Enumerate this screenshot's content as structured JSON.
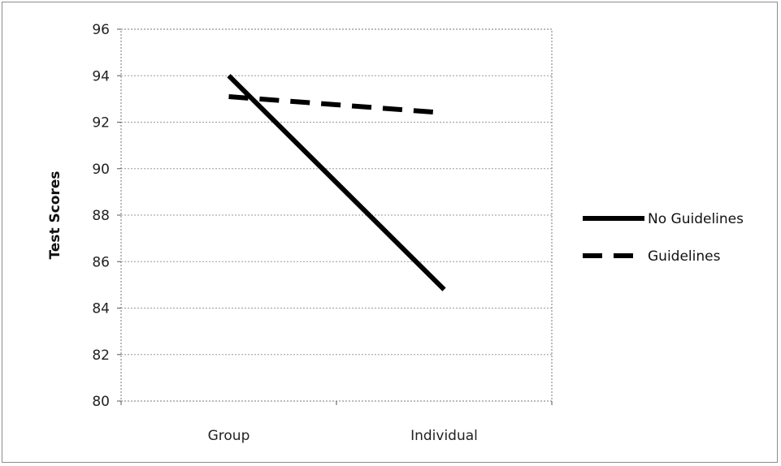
{
  "chart_data": {
    "type": "line",
    "categories": [
      "Group",
      "Individual"
    ],
    "series": [
      {
        "name": "No Guidelines",
        "values": [
          94.0,
          84.8
        ],
        "color": "#000000",
        "style": "solid"
      },
      {
        "name": "Guidelines",
        "values": [
          93.1,
          92.4
        ],
        "color": "#000000",
        "style": "dashed"
      }
    ],
    "title": "",
    "xlabel": "",
    "ylabel": "Test Scores",
    "ylim": [
      80,
      96
    ],
    "yticks": [
      80,
      82,
      84,
      86,
      88,
      90,
      92,
      94,
      96
    ],
    "grid": true,
    "legend_position": "right"
  }
}
